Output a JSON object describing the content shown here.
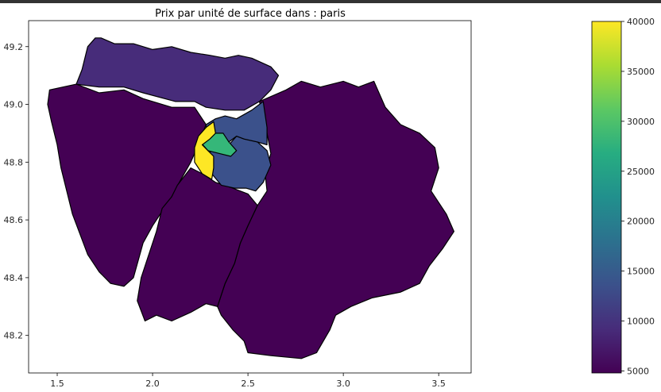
{
  "chart_data": {
    "type": "choropleth map",
    "title": "Prix par unité de surface dans : paris",
    "xlim": [
      1.35,
      3.67
    ],
    "ylim": [
      48.07,
      49.29
    ],
    "x_ticks": [
      "1.5",
      "2.0",
      "2.5",
      "3.0",
      "3.5"
    ],
    "y_ticks": [
      "48.2",
      "48.4",
      "48.6",
      "48.8",
      "49.0",
      "49.2"
    ],
    "colorbar": {
      "colormap": "viridis",
      "min": 4800,
      "max": 40000,
      "ticks": [
        "5000",
        "10000",
        "15000",
        "20000",
        "25000",
        "30000",
        "35000",
        "40000"
      ]
    },
    "regions": [
      {
        "value": 6500,
        "color": "#472c7a",
        "outline": [
          [
            1.7,
            49.23
          ],
          [
            1.66,
            49.2
          ],
          [
            1.63,
            49.12
          ],
          [
            1.6,
            49.07
          ],
          [
            1.72,
            49.06
          ],
          [
            1.85,
            49.06
          ],
          [
            1.95,
            49.04
          ],
          [
            2.12,
            49.01
          ],
          [
            2.22,
            49.01
          ],
          [
            2.28,
            48.99
          ],
          [
            2.38,
            48.98
          ],
          [
            2.48,
            48.98
          ],
          [
            2.56,
            49.01
          ],
          [
            2.62,
            49.05
          ],
          [
            2.66,
            49.1
          ],
          [
            2.62,
            49.13
          ],
          [
            2.52,
            49.16
          ],
          [
            2.45,
            49.17
          ],
          [
            2.38,
            49.16
          ],
          [
            2.3,
            49.17
          ],
          [
            2.2,
            49.18
          ],
          [
            2.1,
            49.2
          ],
          [
            2.0,
            49.19
          ],
          [
            1.9,
            49.21
          ],
          [
            1.8,
            49.21
          ],
          [
            1.73,
            49.23
          ]
        ]
      },
      {
        "value": 5000,
        "color": "#440154",
        "outline": [
          [
            1.46,
            49.05
          ],
          [
            1.6,
            49.07
          ],
          [
            1.72,
            49.04
          ],
          [
            1.85,
            49.05
          ],
          [
            1.95,
            49.02
          ],
          [
            2.1,
            48.99
          ],
          [
            2.22,
            48.99
          ],
          [
            2.28,
            48.93
          ],
          [
            2.24,
            48.86
          ],
          [
            2.2,
            48.8
          ],
          [
            2.14,
            48.73
          ],
          [
            2.1,
            48.68
          ],
          [
            2.0,
            48.58
          ],
          [
            1.95,
            48.52
          ],
          [
            1.9,
            48.4
          ],
          [
            1.85,
            48.37
          ],
          [
            1.78,
            48.38
          ],
          [
            1.72,
            48.42
          ],
          [
            1.66,
            48.48
          ],
          [
            1.62,
            48.55
          ],
          [
            1.58,
            48.62
          ],
          [
            1.55,
            48.7
          ],
          [
            1.52,
            48.78
          ],
          [
            1.5,
            48.86
          ],
          [
            1.47,
            48.94
          ],
          [
            1.45,
            49.0
          ]
        ]
      },
      {
        "value": 5500,
        "color": "#440154",
        "outline": [
          [
            2.56,
            49.01
          ],
          [
            2.7,
            49.05
          ],
          [
            2.78,
            49.08
          ],
          [
            2.88,
            49.06
          ],
          [
            3.0,
            49.08
          ],
          [
            3.08,
            49.06
          ],
          [
            3.16,
            49.08
          ],
          [
            3.22,
            48.99
          ],
          [
            3.3,
            48.93
          ],
          [
            3.4,
            48.9
          ],
          [
            3.48,
            48.85
          ],
          [
            3.5,
            48.78
          ],
          [
            3.46,
            48.7
          ],
          [
            3.54,
            48.62
          ],
          [
            3.58,
            48.56
          ],
          [
            3.52,
            48.5
          ],
          [
            3.45,
            48.44
          ],
          [
            3.4,
            48.38
          ],
          [
            3.3,
            48.35
          ],
          [
            3.15,
            48.33
          ],
          [
            3.04,
            48.3
          ],
          [
            2.96,
            48.27
          ],
          [
            2.93,
            48.22
          ],
          [
            2.86,
            48.14
          ],
          [
            2.78,
            48.12
          ],
          [
            2.62,
            48.13
          ],
          [
            2.5,
            48.14
          ],
          [
            2.48,
            48.18
          ],
          [
            2.42,
            48.22
          ],
          [
            2.36,
            48.27
          ],
          [
            2.34,
            48.3
          ],
          [
            2.38,
            48.38
          ],
          [
            2.43,
            48.45
          ],
          [
            2.46,
            48.52
          ],
          [
            2.5,
            48.58
          ],
          [
            2.55,
            48.65
          ],
          [
            2.6,
            48.7
          ],
          [
            2.59,
            48.76
          ],
          [
            2.62,
            48.83
          ],
          [
            2.6,
            48.9
          ],
          [
            2.58,
            48.96
          ]
        ]
      },
      {
        "value": 5200,
        "color": "#440154",
        "outline": [
          [
            2.13,
            48.72
          ],
          [
            2.2,
            48.78
          ],
          [
            2.26,
            48.76
          ],
          [
            2.33,
            48.73
          ],
          [
            2.42,
            48.71
          ],
          [
            2.5,
            48.69
          ],
          [
            2.55,
            48.65
          ],
          [
            2.5,
            48.58
          ],
          [
            2.46,
            48.52
          ],
          [
            2.43,
            48.45
          ],
          [
            2.38,
            48.38
          ],
          [
            2.34,
            48.3
          ],
          [
            2.28,
            48.31
          ],
          [
            2.2,
            48.28
          ],
          [
            2.1,
            48.25
          ],
          [
            2.02,
            48.27
          ],
          [
            1.96,
            48.25
          ],
          [
            1.92,
            48.32
          ],
          [
            1.94,
            48.4
          ],
          [
            1.98,
            48.48
          ],
          [
            2.02,
            48.56
          ],
          [
            2.05,
            48.64
          ],
          [
            2.1,
            48.68
          ]
        ]
      },
      {
        "value": 10500,
        "color": "#3b518b",
        "outline": [
          [
            2.29,
            48.83
          ],
          [
            2.34,
            48.85
          ],
          [
            2.4,
            48.86
          ],
          [
            2.44,
            48.89
          ],
          [
            2.48,
            48.88
          ],
          [
            2.55,
            48.87
          ],
          [
            2.6,
            48.84
          ],
          [
            2.62,
            48.79
          ],
          [
            2.58,
            48.73
          ],
          [
            2.54,
            48.7
          ],
          [
            2.49,
            48.71
          ],
          [
            2.43,
            48.71
          ],
          [
            2.36,
            48.72
          ],
          [
            2.31,
            48.76
          ],
          [
            2.3,
            48.8
          ]
        ]
      },
      {
        "value": 8000,
        "color": "#3b518b",
        "outline": [
          [
            2.28,
            48.93
          ],
          [
            2.33,
            48.95
          ],
          [
            2.38,
            48.96
          ],
          [
            2.44,
            48.95
          ],
          [
            2.52,
            48.98
          ],
          [
            2.58,
            49.01
          ],
          [
            2.6,
            48.92
          ],
          [
            2.6,
            48.86
          ],
          [
            2.55,
            48.87
          ],
          [
            2.48,
            48.88
          ],
          [
            2.44,
            48.89
          ],
          [
            2.4,
            48.87
          ],
          [
            2.34,
            48.86
          ],
          [
            2.29,
            48.86
          ]
        ]
      },
      {
        "value": 26000,
        "color": "#35b779",
        "outline": [
          [
            2.25,
            48.87
          ],
          [
            2.3,
            48.9
          ],
          [
            2.37,
            48.9
          ],
          [
            2.4,
            48.87
          ],
          [
            2.44,
            48.84
          ],
          [
            2.41,
            48.82
          ],
          [
            2.35,
            48.83
          ],
          [
            2.29,
            48.84
          ]
        ]
      },
      {
        "value": 40000,
        "color": "#fde725",
        "outline": [
          [
            2.22,
            48.85
          ],
          [
            2.24,
            48.89
          ],
          [
            2.28,
            48.92
          ],
          [
            2.32,
            48.94
          ],
          [
            2.33,
            48.9
          ],
          [
            2.3,
            48.88
          ],
          [
            2.26,
            48.86
          ],
          [
            2.29,
            48.84
          ],
          [
            2.32,
            48.82
          ],
          [
            2.32,
            48.78
          ],
          [
            2.31,
            48.74
          ],
          [
            2.26,
            48.76
          ],
          [
            2.22,
            48.8
          ]
        ]
      }
    ]
  }
}
